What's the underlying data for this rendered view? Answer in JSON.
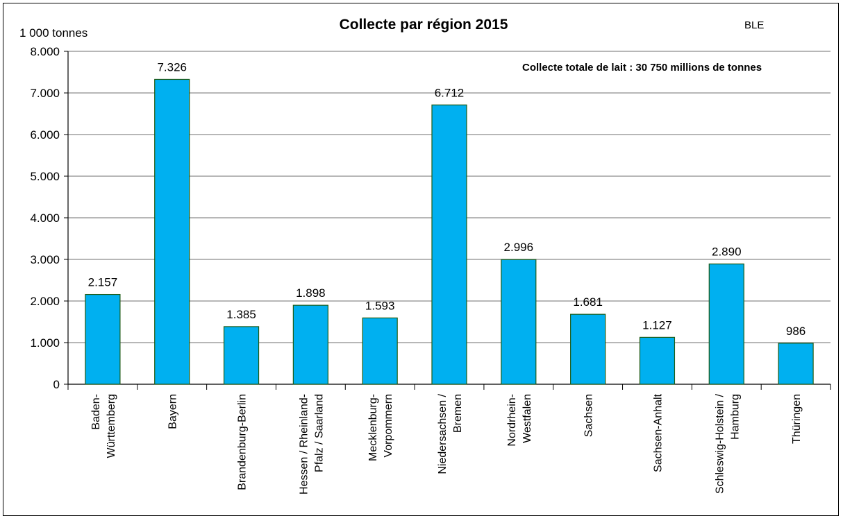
{
  "chart_data": {
    "type": "bar",
    "title": "Collecte par région 2015",
    "source": "BLE",
    "ylabel": "1 000 tonnes",
    "annotation": "Collecte totale de lait : 30 750 millions de tonnes",
    "ylim": [
      0,
      8000
    ],
    "yticks": [
      "0",
      "1.000",
      "2.000",
      "3.000",
      "4.000",
      "5.000",
      "6.000",
      "7.000",
      "8.000"
    ],
    "grid": true,
    "bar_color": "#00B0F0",
    "bar_edge_color": "#1E5A14",
    "categories": [
      [
        "Baden-",
        "Württemberg"
      ],
      [
        "Bayern"
      ],
      [
        "Brandenburg-Berlin"
      ],
      [
        "Hessen / Rheinland-",
        "Pfalz / Saarland"
      ],
      [
        "Mecklenburg-",
        "Vorpommern"
      ],
      [
        "Niedersachsen /",
        "Bremen"
      ],
      [
        "Nordrhein-",
        "Westfalen"
      ],
      [
        "Sachsen"
      ],
      [
        "Sachsen-Anhalt"
      ],
      [
        "Schleswig-Holstein /",
        "Hamburg"
      ],
      [
        "Thüringen"
      ]
    ],
    "values": [
      2157,
      7326,
      1385,
      1898,
      1593,
      6712,
      2996,
      1681,
      1127,
      2890,
      986
    ],
    "data_labels": [
      "2.157",
      "7.326",
      "1.385",
      "1.898",
      "1.593",
      "6.712",
      "2.996",
      "1.681",
      "1.127",
      "2.890",
      "986"
    ]
  }
}
